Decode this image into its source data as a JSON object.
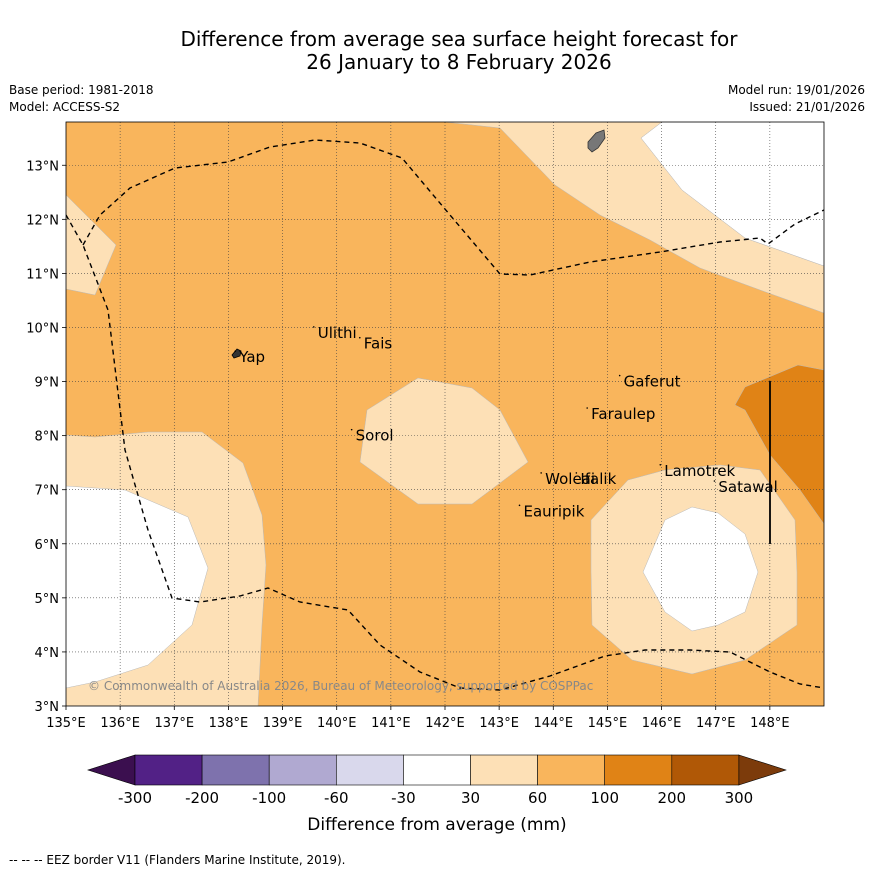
{
  "title_line1": "Difference from average sea surface height forecast for",
  "title_line2": "26 January to 8 February 2026",
  "base_period": "Base period: 1981-2018",
  "model": "Model: ACCESS-S2",
  "model_run": "Model run: 19/01/2026",
  "issued": "Issued: 21/01/2026",
  "copyright": "© Commonwealth of Australia 2026, Bureau of Meteorology, supported by COSPPac",
  "footnote": "--  --  -- EEZ border V11 (Flanders Marine Institute, 2019).",
  "map": {
    "lon_range": [
      135,
      149
    ],
    "lat_range": [
      3,
      13.8
    ],
    "lon_ticks": [
      "135°E",
      "136°E",
      "137°E",
      "138°E",
      "139°E",
      "140°E",
      "141°E",
      "142°E",
      "143°E",
      "144°E",
      "145°E",
      "146°E",
      "147°E",
      "148°E"
    ],
    "lat_ticks": [
      "3°N",
      "4°N",
      "5°N",
      "6°N",
      "7°N",
      "8°N",
      "9°N",
      "10°N",
      "11°N",
      "12°N",
      "13°N"
    ],
    "places": [
      {
        "name": "Ulithi",
        "lon": 139.65,
        "lat": 9.9
      },
      {
        "name": "Fais",
        "lon": 140.5,
        "lat": 9.7
      },
      {
        "name": "Yap",
        "lon": 138.2,
        "lat": 9.45
      },
      {
        "name": "Gaferut",
        "lon": 145.3,
        "lat": 9.0
      },
      {
        "name": "Faraulep",
        "lon": 144.7,
        "lat": 8.4
      },
      {
        "name": "Sorol",
        "lon": 140.35,
        "lat": 8.0
      },
      {
        "name": "Lamotrek",
        "lon": 146.05,
        "lat": 7.35
      },
      {
        "name": "Woleai",
        "lon": 143.85,
        "lat": 7.2
      },
      {
        "name": "Ifalik",
        "lon": 144.5,
        "lat": 7.2
      },
      {
        "name": "Satawal",
        "lon": 147.05,
        "lat": 7.05
      },
      {
        "name": "Eauripik",
        "lon": 143.45,
        "lat": 6.6
      }
    ]
  },
  "colorbar": {
    "label": "Difference from average (mm)",
    "ticks": [
      "-300",
      "-200",
      "-100",
      "-60",
      "-30",
      "30",
      "60",
      "100",
      "200",
      "300"
    ],
    "colors": {
      "below_min": "#3b0f4f",
      "neg_300_200": "#522186",
      "neg_200_100": "#7e72ad",
      "neg_100_60": "#b0a9d1",
      "neg_60_30": "#d9d8ec",
      "neg_30_30": "#ffffff",
      "pos_30_60": "#fde0b6",
      "pos_60_100": "#f9b55c",
      "pos_100_200": "#e08316",
      "pos_200_300": "#b05806",
      "above_max": "#7c3b0b"
    }
  }
}
